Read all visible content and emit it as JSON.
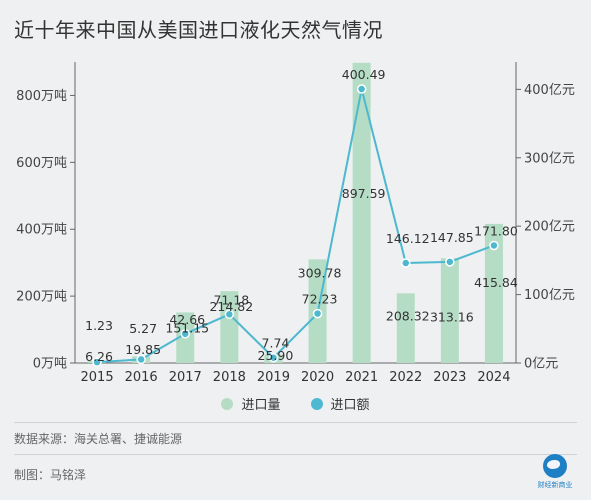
{
  "title": "近十年来中国从美国进口液化天然气情况",
  "chart_data": {
    "type": "bar+line",
    "categories": [
      "2015",
      "2016",
      "2017",
      "2018",
      "2019",
      "2020",
      "2021",
      "2022",
      "2023",
      "2024"
    ],
    "series": [
      {
        "name": "进口量",
        "type": "bar",
        "axis": "left",
        "values": [
          6.26,
          19.85,
          151.15,
          214.82,
          25.9,
          309.78,
          897.59,
          208.32,
          313.16,
          415.84
        ],
        "labels": [
          "6.26",
          "19.85",
          "151.15",
          "214.82",
          "25.90",
          "309.78",
          "897.59",
          "208.32",
          "313.16",
          "415.84"
        ],
        "color": "#b5ddc6"
      },
      {
        "name": "进口额",
        "type": "line",
        "axis": "right",
        "values": [
          1.23,
          5.27,
          42.66,
          71.18,
          7.74,
          72.23,
          400.49,
          146.12,
          147.85,
          171.8
        ],
        "labels": [
          "1.23",
          "5.27",
          "42.66",
          "71.18",
          "7.74",
          "72.23",
          "400.49",
          "146.12",
          "147.85",
          "171.80"
        ],
        "color": "#4db8cf"
      }
    ],
    "y_left": {
      "range": [
        0,
        900
      ],
      "ticks": [
        0,
        200,
        400,
        600,
        800
      ],
      "tick_labels": [
        "0万吨",
        "200万吨",
        "400万吨",
        "600万吨",
        "800万吨"
      ]
    },
    "y_right": {
      "range": [
        0,
        440
      ],
      "ticks": [
        0,
        100,
        200,
        300,
        400
      ],
      "tick_labels": [
        "0亿元",
        "100亿元",
        "200亿元",
        "300亿元",
        "400亿元"
      ]
    },
    "grid": false,
    "legend_position": "bottom-center"
  },
  "legend": {
    "bar_label": "进口量",
    "line_label": "进口额",
    "bar_color": "#b5ddc6",
    "line_color": "#4db8cf"
  },
  "source": "数据来源：海关总署、捷诚能源",
  "credit": "制图：马铭泽",
  "logo": {
    "text": "财经新商业"
  }
}
